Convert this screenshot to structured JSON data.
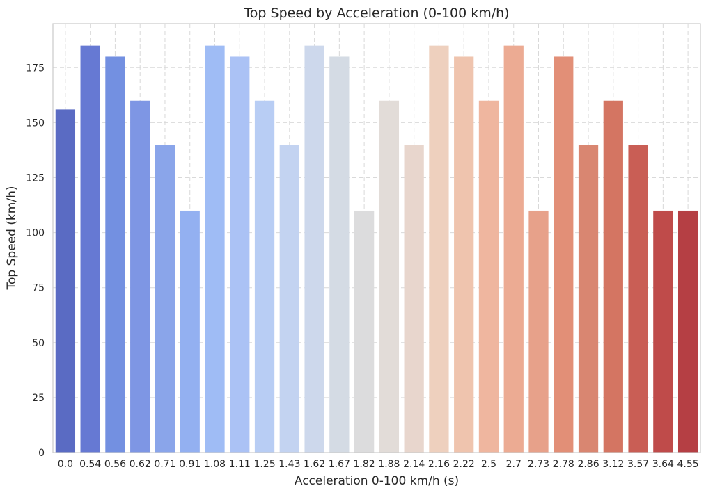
{
  "chart_data": {
    "type": "bar",
    "title": "Top Speed by Acceleration (0-100 km/h)",
    "xlabel": "Acceleration 0-100 km/h (s)",
    "ylabel": "Top Speed (km/h)",
    "categories": [
      "0.0",
      "0.54",
      "0.56",
      "0.62",
      "0.71",
      "0.91",
      "1.08",
      "1.11",
      "1.25",
      "1.43",
      "1.62",
      "1.67",
      "1.82",
      "1.88",
      "2.14",
      "2.16",
      "2.22",
      "2.5",
      "2.7",
      "2.73",
      "2.78",
      "2.86",
      "3.12",
      "3.57",
      "3.64",
      "4.55"
    ],
    "values": [
      156,
      185,
      180,
      160,
      140,
      110,
      185,
      180,
      160,
      140,
      185,
      180,
      110,
      160,
      140,
      185,
      180,
      160,
      185,
      110,
      180,
      140,
      160,
      140,
      110,
      110
    ],
    "colors": [
      "#5a6bc3",
      "#6679d3",
      "#7390e1",
      "#7e96e4",
      "#8aa5ea",
      "#93b0f1",
      "#9fbcf5",
      "#abc2f5",
      "#b8cdf4",
      "#c3d3f1",
      "#cdd8ec",
      "#d4dbe4",
      "#dcdcdd",
      "#e2dcd8",
      "#e8d6cd",
      "#eed0be",
      "#efc4ae",
      "#efb69f",
      "#ecab93",
      "#e7a18a",
      "#e28f77",
      "#d98671",
      "#d47562",
      "#c95e55",
      "#bf4b4a",
      "#b53f44"
    ],
    "ylim": [
      0,
      195
    ],
    "yticks": [
      0,
      25,
      50,
      75,
      100,
      125,
      150,
      175
    ],
    "grid": true,
    "legend": "none"
  }
}
